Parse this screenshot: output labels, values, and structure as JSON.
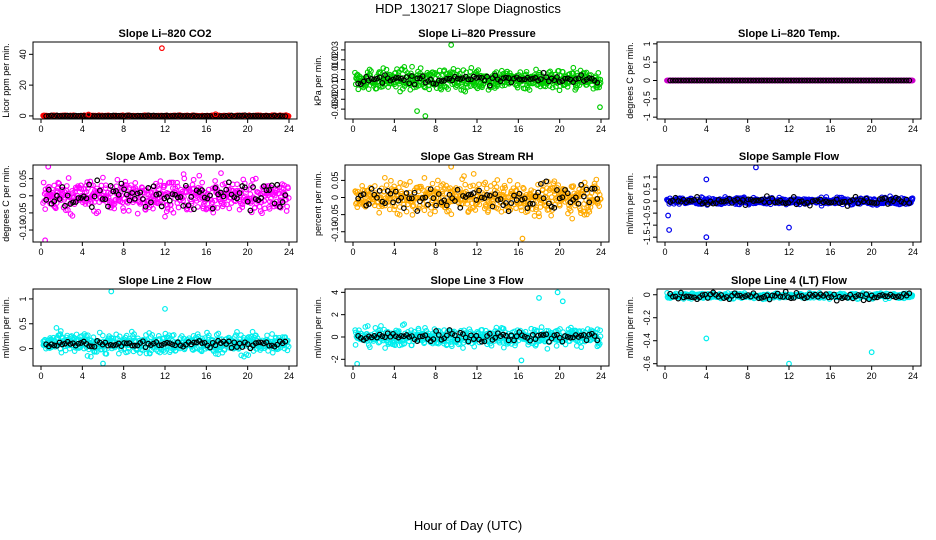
{
  "figure": {
    "title": "HDP_130217  Slope Diagnostics",
    "xlabel": "Hour of Day (UTC)"
  },
  "chart_data": [
    {
      "type": "scatter",
      "title": "Slope Li–820 CO2",
      "ylabel": "Licor ppm per min.",
      "color": "#ff0000",
      "xlim": [
        0,
        24
      ],
      "xticks": [
        0,
        4,
        8,
        12,
        16,
        20,
        24
      ],
      "ylim": [
        -2,
        48
      ],
      "yticks": [
        0,
        20,
        40
      ],
      "noise": 0.35,
      "outliers": [
        [
          11.7,
          44
        ],
        [
          4.6,
          0.9
        ],
        [
          16.9,
          1.1
        ]
      ],
      "dense": true,
      "dark": 0.3,
      "base": 0
    },
    {
      "type": "scatter",
      "title": "Slope Li–820 Pressure",
      "ylabel": "kPa per min.",
      "color": "#00cc00",
      "xlim": [
        0,
        24
      ],
      "xticks": [
        0,
        4,
        8,
        12,
        16,
        20,
        24
      ],
      "ylim": [
        -0.04,
        0.038
      ],
      "yticks": [
        -0.03,
        -0.02,
        -0.01,
        0.0,
        0.01,
        0.02,
        0.03
      ],
      "noise": 0.009,
      "outliers": [
        [
          9.5,
          0.035
        ],
        [
          7.0,
          -0.037
        ],
        [
          6.2,
          -0.032
        ],
        [
          23.9,
          -0.028
        ]
      ],
      "dense": true,
      "dark": 0.004,
      "base": 0
    },
    {
      "type": "scatter",
      "title": "Slope Li–820 Temp.",
      "ylabel": "degrees C per min.",
      "color": "#cc00cc",
      "xlim": [
        0,
        24
      ],
      "xticks": [
        0,
        4,
        8,
        12,
        16,
        20,
        24
      ],
      "ylim": [
        -1.05,
        1.05
      ],
      "yticks": [
        -1.0,
        -0.5,
        0.0,
        0.5,
        1.0
      ],
      "noise": 0.0,
      "outliers": [],
      "dense": true,
      "dark": 0.0,
      "base": 0
    },
    {
      "type": "scatter",
      "title": "Slope Amb. Box Temp.",
      "ylabel": "degrees C per min.",
      "color": "#ff00ff",
      "xlim": [
        0,
        24
      ],
      "xticks": [
        0,
        4,
        8,
        12,
        16,
        20,
        24
      ],
      "ylim": [
        -0.135,
        0.09
      ],
      "yticks": [
        -0.1,
        -0.05,
        0.0,
        0.05
      ],
      "noise": 0.04,
      "outliers": [
        [
          0.4,
          -0.13
        ],
        [
          0.7,
          0.085
        ]
      ],
      "dense": true,
      "dark": 0.035,
      "base": 0
    },
    {
      "type": "scatter",
      "title": "Slope Gas Stream RH",
      "ylabel": "percent per min.",
      "color": "#ffaa00",
      "xlim": [
        0,
        24
      ],
      "xticks": [
        0,
        4,
        8,
        12,
        16,
        20,
        24
      ],
      "ylim": [
        -0.13,
        0.095
      ],
      "yticks": [
        -0.1,
        -0.05,
        0.0,
        0.05
      ],
      "noise": 0.04,
      "outliers": [
        [
          16.4,
          -0.12
        ],
        [
          9.5,
          0.09
        ]
      ],
      "dense": true,
      "dark": 0.035,
      "base": 0
    },
    {
      "type": "scatter",
      "title": "Slope Sample Flow",
      "ylabel": "ml/min per min.",
      "color": "#0000ee",
      "xlim": [
        0,
        24
      ],
      "xticks": [
        0,
        4,
        8,
        12,
        16,
        20,
        24
      ],
      "ylim": [
        -1.7,
        1.5
      ],
      "yticks": [
        -1.5,
        -1.0,
        -0.5,
        0.0,
        0.5,
        1.0
      ],
      "noise": 0.12,
      "outliers": [
        [
          8.8,
          1.4
        ],
        [
          4.0,
          -1.5
        ],
        [
          0.4,
          -1.2
        ],
        [
          4.0,
          0.9
        ],
        [
          12.0,
          -1.1
        ],
        [
          0.3,
          -0.6
        ]
      ],
      "dense": true,
      "dark": 0.15,
      "base": 0
    },
    {
      "type": "scatter",
      "title": "Slope Line 2 Flow",
      "ylabel": "ml/min per min.",
      "color": "#00eeee",
      "xlim": [
        0,
        24
      ],
      "xticks": [
        0,
        4,
        8,
        12,
        16,
        20,
        24
      ],
      "ylim": [
        -0.35,
        1.2
      ],
      "yticks": [
        0.0,
        0.5,
        1.0
      ],
      "noise": 0.18,
      "outliers": [
        [
          6.8,
          1.15
        ],
        [
          12.0,
          0.8
        ],
        [
          6.0,
          -0.3
        ]
      ],
      "dense": true,
      "dark": 0.06,
      "base": 0.1
    },
    {
      "type": "scatter",
      "title": "Slope Line 3 Flow",
      "ylabel": "ml/min per min.",
      "color": "#00eeee",
      "xlim": [
        0,
        24
      ],
      "xticks": [
        0,
        4,
        8,
        12,
        16,
        20,
        24
      ],
      "ylim": [
        -2.6,
        4.3
      ],
      "yticks": [
        -2,
        0,
        2,
        4
      ],
      "noise": 0.7,
      "outliers": [
        [
          19.8,
          4.0
        ],
        [
          18.0,
          3.5
        ],
        [
          0.4,
          -2.4
        ],
        [
          16.3,
          -2.1
        ],
        [
          20.3,
          3.2
        ]
      ],
      "dense": true,
      "dark": 0.4,
      "base": 0
    },
    {
      "type": "scatter",
      "title": "Slope Line 4 (LT) Flow",
      "ylabel": "ml/min per min.",
      "color": "#00eeee",
      "xlim": [
        0,
        24
      ],
      "xticks": [
        0,
        4,
        8,
        12,
        16,
        20,
        24
      ],
      "ylim": [
        -0.62,
        0.05
      ],
      "yticks": [
        -0.6,
        -0.4,
        -0.2,
        0.0
      ],
      "noise": 0.02,
      "outliers": [
        [
          4.0,
          -0.38
        ],
        [
          12.0,
          -0.6
        ],
        [
          20.0,
          -0.5
        ]
      ],
      "dense": true,
      "dark": 0.03,
      "base": -0.01
    }
  ]
}
